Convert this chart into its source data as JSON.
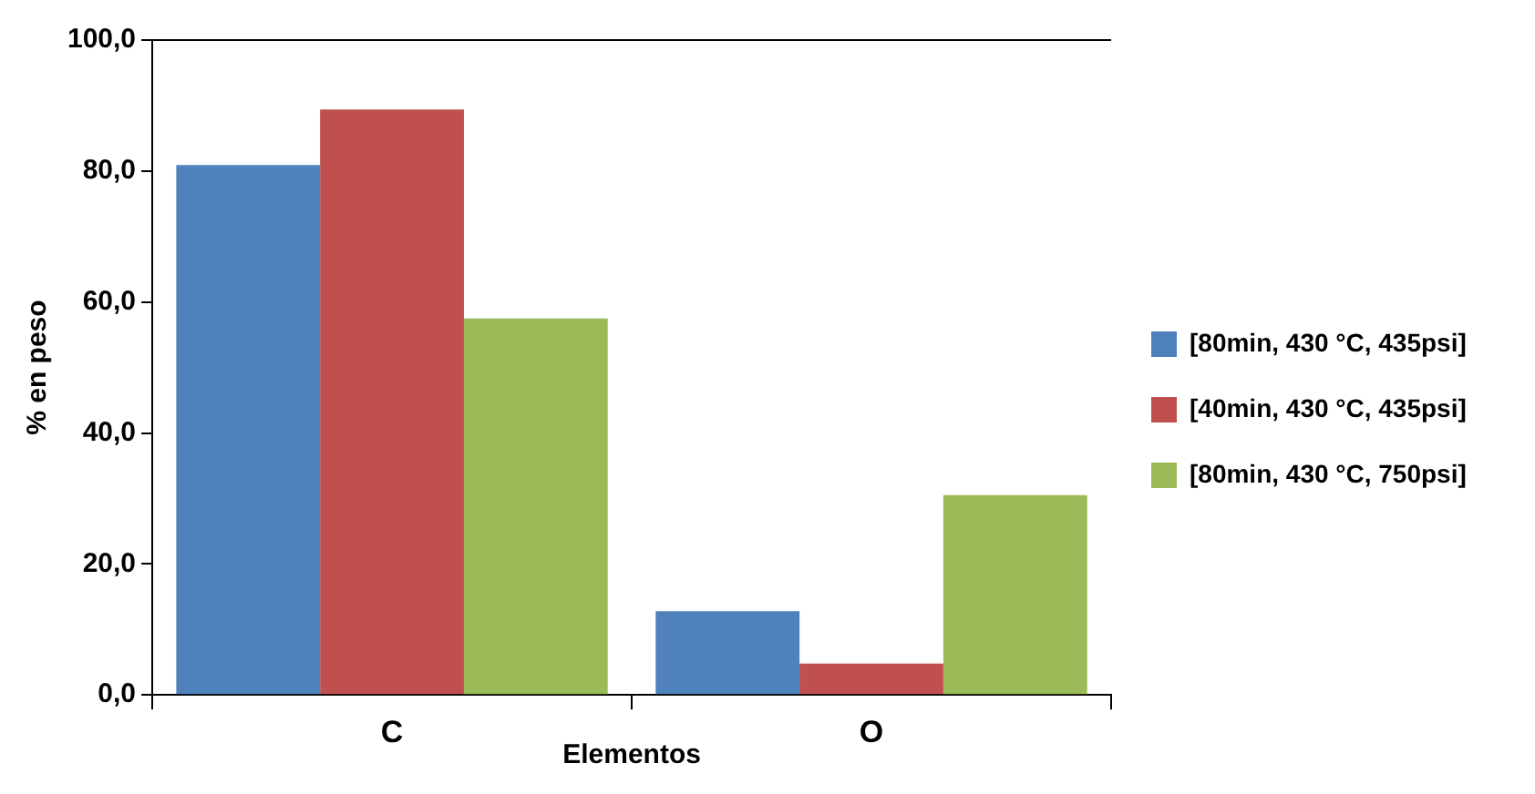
{
  "chart_data": {
    "type": "bar",
    "xlabel": "Elementos",
    "ylabel": "% en peso",
    "categories": [
      "C",
      "O"
    ],
    "series": [
      {
        "name": "[80min, 430 °C, 435psi]",
        "color": "#4f81bd",
        "values": [
          80.9,
          12.8
        ]
      },
      {
        "name": "[40min, 430 °C, 435psi]",
        "color": "#c0504d",
        "values": [
          89.4,
          4.8
        ]
      },
      {
        "name": "[80min, 430 °C, 750psi]",
        "color": "#9bbb59",
        "values": [
          57.5,
          30.5
        ]
      }
    ],
    "ylim": [
      0,
      100
    ],
    "yticks": [
      {
        "value": 0,
        "label": "0,0"
      },
      {
        "value": 20,
        "label": "20,0"
      },
      {
        "value": 40,
        "label": "40,0"
      },
      {
        "value": 60,
        "label": "60,0"
      },
      {
        "value": 80,
        "label": "80,0"
      },
      {
        "value": 100,
        "label": "100,0"
      }
    ],
    "grid": false,
    "legend": "right"
  }
}
